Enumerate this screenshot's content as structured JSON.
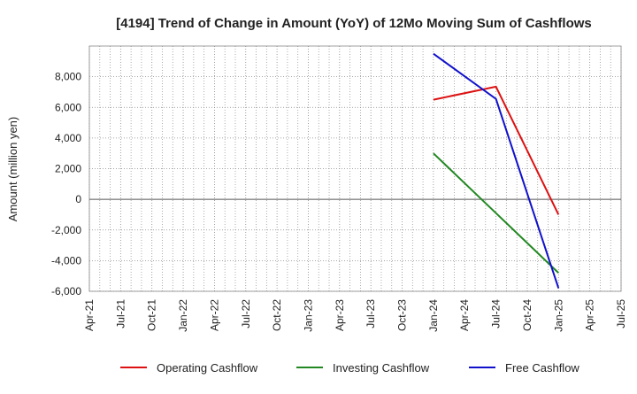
{
  "chart_data": {
    "type": "line",
    "title": "[4194]  Trend of Change in Amount (YoY) of 12Mo Moving Sum of Cashflows",
    "xlabel": "",
    "ylabel": "Amount (million yen)",
    "x_ticks": [
      "Apr-21",
      "Jul-21",
      "Oct-21",
      "Jan-22",
      "Apr-22",
      "Jul-22",
      "Oct-22",
      "Jan-23",
      "Apr-23",
      "Jul-23",
      "Oct-23",
      "Jan-24",
      "Apr-24",
      "Jul-24",
      "Oct-24",
      "Jan-25",
      "Apr-25",
      "Jul-25"
    ],
    "y_ticks": [
      -6000,
      -4000,
      -2000,
      0,
      2000,
      4000,
      6000,
      8000
    ],
    "y_tick_labels": [
      "-6,000",
      "-4,000",
      "-2,000",
      "0",
      "2,000",
      "4,000",
      "6,000",
      "8,000"
    ],
    "ylim": [
      -6000,
      10000
    ],
    "grid": true,
    "legend_position": "bottom",
    "series": [
      {
        "name": "Operating Cashflow",
        "color": "#dd1111",
        "x": [
          "Jan-24",
          "Jul-24",
          "Jan-25"
        ],
        "values": [
          6500,
          7350,
          -1000
        ]
      },
      {
        "name": "Investing Cashflow",
        "color": "#228822",
        "x": [
          "Jan-24",
          "Jul-24",
          "Jan-25"
        ],
        "values": [
          3000,
          -900,
          -4800
        ]
      },
      {
        "name": "Free Cashflow",
        "color": "#1111cc",
        "x": [
          "Jan-24",
          "Jul-24",
          "Jan-25"
        ],
        "values": [
          9500,
          6550,
          -5800
        ]
      }
    ]
  }
}
